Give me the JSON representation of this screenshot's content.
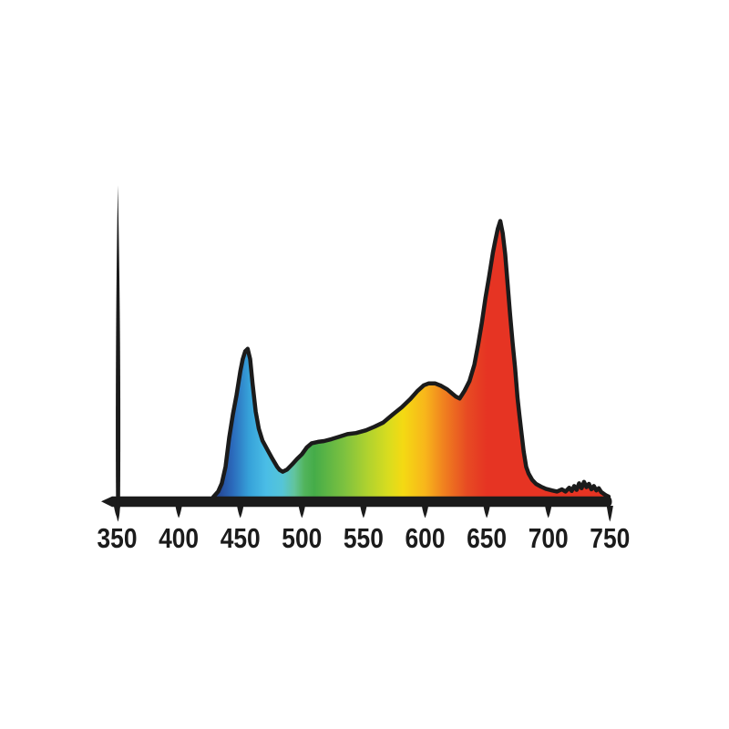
{
  "meta": {
    "background_color": "#ffffff",
    "axis_color": "#1b1b1b",
    "outline_color": "#1b1b1b",
    "label_color": "#1b1b1b"
  },
  "chart_data": {
    "type": "area",
    "title": "",
    "xlabel": "",
    "ylabel": "",
    "grid": false,
    "legend": false,
    "x_axis": {
      "unit": "nm",
      "min": 350,
      "max": 750,
      "tick_step": 50,
      "tick_labels": [
        "350",
        "400",
        "450",
        "500",
        "550",
        "600",
        "650",
        "700",
        "750"
      ]
    },
    "y_axis": {
      "labeled": false,
      "ylim": [
        0,
        1.05
      ],
      "note": "relative intensity, no scale shown"
    },
    "points": [
      [
        428,
        0
      ],
      [
        432,
        0.02
      ],
      [
        435,
        0.05
      ],
      [
        438,
        0.11
      ],
      [
        441,
        0.215
      ],
      [
        444,
        0.3
      ],
      [
        447,
        0.37
      ],
      [
        450,
        0.455
      ],
      [
        452,
        0.5
      ],
      [
        454,
        0.528
      ],
      [
        456,
        0.537
      ],
      [
        458,
        0.5
      ],
      [
        460,
        0.41
      ],
      [
        462.5,
        0.31
      ],
      [
        465,
        0.248
      ],
      [
        468,
        0.205
      ],
      [
        472,
        0.172
      ],
      [
        476,
        0.139
      ],
      [
        480,
        0.109
      ],
      [
        482,
        0.098
      ],
      [
        484.5,
        0.092
      ],
      [
        488,
        0.1
      ],
      [
        492,
        0.118
      ],
      [
        496,
        0.138
      ],
      [
        500,
        0.155
      ],
      [
        504,
        0.18
      ],
      [
        508,
        0.195
      ],
      [
        513,
        0.2
      ],
      [
        518,
        0.203
      ],
      [
        524,
        0.21
      ],
      [
        530,
        0.218
      ],
      [
        537,
        0.228
      ],
      [
        544,
        0.232
      ],
      [
        552,
        0.242
      ],
      [
        559,
        0.255
      ],
      [
        566,
        0.27
      ],
      [
        574,
        0.3
      ],
      [
        581,
        0.325
      ],
      [
        588,
        0.355
      ],
      [
        594,
        0.385
      ],
      [
        599,
        0.405
      ],
      [
        603,
        0.412
      ],
      [
        608,
        0.412
      ],
      [
        613,
        0.403
      ],
      [
        618,
        0.39
      ],
      [
        622,
        0.375
      ],
      [
        625,
        0.364
      ],
      [
        628,
        0.357
      ],
      [
        632,
        0.385
      ],
      [
        636,
        0.42
      ],
      [
        640,
        0.48
      ],
      [
        643,
        0.55
      ],
      [
        646,
        0.63
      ],
      [
        649,
        0.72
      ],
      [
        652,
        0.8
      ],
      [
        655,
        0.885
      ],
      [
        657,
        0.93
      ],
      [
        659,
        0.972
      ],
      [
        661,
        1.0
      ],
      [
        663,
        0.955
      ],
      [
        665,
        0.88
      ],
      [
        667,
        0.77
      ],
      [
        669,
        0.66
      ],
      [
        671,
        0.56
      ],
      [
        673,
        0.47
      ],
      [
        675,
        0.36
      ],
      [
        676.5,
        0.3
      ],
      [
        678,
        0.24
      ],
      [
        680,
        0.165
      ],
      [
        682,
        0.11
      ],
      [
        684,
        0.085
      ],
      [
        687,
        0.062
      ],
      [
        690,
        0.048
      ],
      [
        694,
        0.038
      ],
      [
        698,
        0.03
      ],
      [
        703,
        0.024
      ],
      [
        707,
        0.02
      ],
      [
        711,
        0.028
      ],
      [
        714,
        0.02
      ],
      [
        717,
        0.034
      ],
      [
        719,
        0.022
      ],
      [
        721,
        0.04
      ],
      [
        723,
        0.026
      ],
      [
        725,
        0.05
      ],
      [
        727,
        0.032
      ],
      [
        729,
        0.055
      ],
      [
        731,
        0.036
      ],
      [
        733,
        0.048
      ],
      [
        735,
        0.028
      ],
      [
        737,
        0.04
      ],
      [
        739,
        0.024
      ],
      [
        741,
        0.032
      ],
      [
        743,
        0.018
      ],
      [
        745,
        0.012
      ],
      [
        747,
        0.006
      ],
      [
        749,
        0.002
      ]
    ],
    "spectrum_gradient": [
      {
        "nm": 430,
        "color": "#24418F"
      },
      {
        "nm": 444,
        "color": "#2B6BBC"
      },
      {
        "nm": 457,
        "color": "#36A1D9"
      },
      {
        "nm": 471,
        "color": "#4ABDE6"
      },
      {
        "nm": 484,
        "color": "#55C5D8"
      },
      {
        "nm": 494,
        "color": "#62C49C"
      },
      {
        "nm": 502,
        "color": "#52B45C"
      },
      {
        "nm": 510,
        "color": "#45AC49"
      },
      {
        "nm": 535,
        "color": "#7EC23F"
      },
      {
        "nm": 553,
        "color": "#AFD22F"
      },
      {
        "nm": 570,
        "color": "#D8DC1F"
      },
      {
        "nm": 582,
        "color": "#F4DA13"
      },
      {
        "nm": 600,
        "color": "#F8B61B"
      },
      {
        "nm": 615,
        "color": "#F0811F"
      },
      {
        "nm": 634,
        "color": "#E74B23"
      },
      {
        "nm": 650,
        "color": "#E63423"
      },
      {
        "nm": 750,
        "color": "#E63423"
      }
    ]
  }
}
